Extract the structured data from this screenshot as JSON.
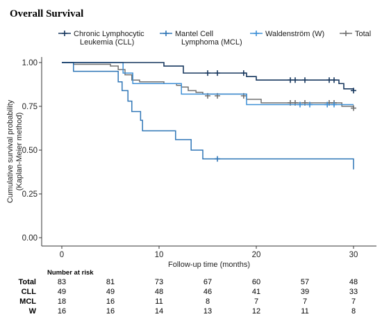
{
  "chart_data": {
    "type": "line",
    "title": "Overall Survival",
    "xlabel": "Follow-up time (months)",
    "ylabel": [
      "Cumulative survival probability",
      "(Kaplan-Meier method)"
    ],
    "xlim": [
      -2,
      32
    ],
    "ylim": [
      0,
      1
    ],
    "xticks": [
      0,
      10,
      20,
      30
    ],
    "xtick_labels": [
      "0",
      "10",
      "20",
      "30"
    ],
    "yticks": [
      0.0,
      0.25,
      0.5,
      0.75,
      1.0
    ],
    "ytick_labels": [
      "0.00",
      "0.25",
      "0.50",
      "0.75",
      "1.00"
    ],
    "grid": false,
    "legend_position": "top",
    "series": [
      {
        "key": "cll",
        "name": "Chronic Lymphocytic\nLeukemia (CLL)",
        "color": "#17375e",
        "steps": [
          [
            0,
            1.0
          ],
          [
            10.5,
            0.98
          ],
          [
            12.5,
            0.94
          ],
          [
            19,
            0.92
          ],
          [
            20,
            0.9
          ],
          [
            28.5,
            0.88
          ],
          [
            29,
            0.85
          ],
          [
            30,
            0.84
          ]
        ],
        "censors": [
          [
            15,
            0.94
          ],
          [
            16,
            0.94
          ],
          [
            18.7,
            0.94
          ],
          [
            23.5,
            0.9
          ],
          [
            24,
            0.9
          ],
          [
            25,
            0.9
          ],
          [
            27.5,
            0.9
          ],
          [
            28,
            0.9
          ],
          [
            30,
            0.84
          ]
        ]
      },
      {
        "key": "mcl",
        "name": "Mantel Cell\nLymphoma (MCL)",
        "color": "#2e75b6",
        "steps": [
          [
            0,
            1.0
          ],
          [
            1.2,
            0.95
          ],
          [
            5.8,
            0.89
          ],
          [
            6.2,
            0.84
          ],
          [
            6.8,
            0.78
          ],
          [
            7.2,
            0.72
          ],
          [
            8.1,
            0.67
          ],
          [
            8.3,
            0.61
          ],
          [
            11.7,
            0.56
          ],
          [
            13.3,
            0.5
          ],
          [
            14.5,
            0.45
          ],
          [
            30,
            0.39
          ]
        ],
        "censors": [
          [
            16,
            0.45
          ]
        ]
      },
      {
        "key": "w",
        "name": "Waldenström (W)",
        "color": "#3d8fd6",
        "steps": [
          [
            0,
            1.0
          ],
          [
            6.3,
            0.94
          ],
          [
            7.3,
            0.88
          ],
          [
            12.3,
            0.82
          ],
          [
            19,
            0.76
          ]
        ],
        "censors": [
          [
            24.5,
            0.76
          ],
          [
            25.5,
            0.76
          ],
          [
            27.3,
            0.76
          ],
          [
            28,
            0.76
          ]
        ]
      },
      {
        "key": "total",
        "name": "Total",
        "color": "#707070",
        "steps": [
          [
            0,
            1.0
          ],
          [
            1.2,
            0.99
          ],
          [
            5,
            0.98
          ],
          [
            5.8,
            0.96
          ],
          [
            6.5,
            0.93
          ],
          [
            7.2,
            0.9
          ],
          [
            8,
            0.89
          ],
          [
            10.5,
            0.88
          ],
          [
            11.8,
            0.87
          ],
          [
            12.3,
            0.86
          ],
          [
            13,
            0.84
          ],
          [
            13.8,
            0.83
          ],
          [
            14.5,
            0.82
          ],
          [
            19,
            0.79
          ],
          [
            20.5,
            0.77
          ],
          [
            28.8,
            0.75
          ],
          [
            30,
            0.74
          ]
        ],
        "censors": [
          [
            15,
            0.81
          ],
          [
            16,
            0.81
          ],
          [
            18.7,
            0.81
          ],
          [
            23.5,
            0.77
          ],
          [
            24,
            0.77
          ],
          [
            25,
            0.77
          ],
          [
            27.5,
            0.77
          ],
          [
            28,
            0.77
          ],
          [
            30,
            0.74
          ]
        ]
      }
    ],
    "risk_table": {
      "title": "Number at risk",
      "times": [
        0,
        5,
        10,
        15,
        20,
        25,
        30
      ],
      "rows": [
        {
          "label": "Total",
          "values": [
            83,
            81,
            73,
            67,
            60,
            57,
            48
          ]
        },
        {
          "label": "CLL",
          "values": [
            49,
            49,
            48,
            46,
            41,
            39,
            33
          ]
        },
        {
          "label": "MCL",
          "values": [
            18,
            16,
            11,
            8,
            7,
            7,
            7
          ]
        },
        {
          "label": "W",
          "values": [
            16,
            16,
            14,
            13,
            12,
            11,
            8
          ]
        }
      ]
    }
  }
}
